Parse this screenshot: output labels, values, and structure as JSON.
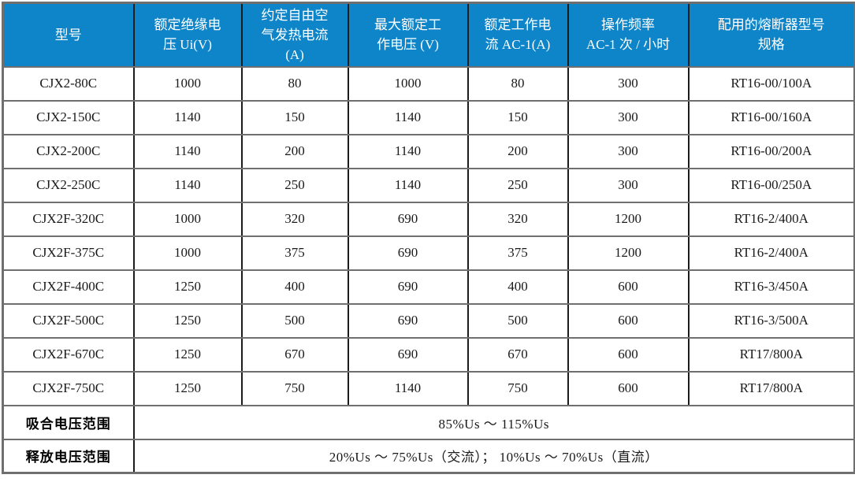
{
  "table": {
    "accent_color": "#0e85c8",
    "header_text_color": "#ffffff",
    "columns": [
      "型号",
      "额定绝缘电\n压 Ui(V)",
      "约定自由空\n气发热电流\n(A)",
      "最大额定工\n作电压 (V)",
      "额定工作电\n流 AC-1(A)",
      "操作频率\nAC-1 次 / 小时",
      "配用的熔断器型号\n规格"
    ],
    "rows": [
      [
        "CJX2-80C",
        "1000",
        "80",
        "1000",
        "80",
        "300",
        "RT16-00/100A"
      ],
      [
        "CJX2-150C",
        "1140",
        "150",
        "1140",
        "150",
        "300",
        "RT16-00/160A"
      ],
      [
        "CJX2-200C",
        "1140",
        "200",
        "1140",
        "200",
        "300",
        "RT16-00/200A"
      ],
      [
        "CJX2-250C",
        "1140",
        "250",
        "1140",
        "250",
        "300",
        "RT16-00/250A"
      ],
      [
        "CJX2F-320C",
        "1000",
        "320",
        "690",
        "320",
        "1200",
        "RT16-2/400A"
      ],
      [
        "CJX2F-375C",
        "1000",
        "375",
        "690",
        "375",
        "1200",
        "RT16-2/400A"
      ],
      [
        "CJX2F-400C",
        "1250",
        "400",
        "690",
        "400",
        "600",
        "RT16-3/450A"
      ],
      [
        "CJX2F-500C",
        "1250",
        "500",
        "690",
        "500",
        "600",
        "RT16-3/500A"
      ],
      [
        "CJX2F-670C",
        "1250",
        "670",
        "690",
        "670",
        "600",
        "RT17/800A"
      ],
      [
        "CJX2F-750C",
        "1250",
        "750",
        "1140",
        "750",
        "600",
        "RT17/800A"
      ]
    ],
    "footer_rows": [
      {
        "label": "吸合电压范围",
        "value": "85%Us ～ 115%Us"
      },
      {
        "label": "释放电压范围",
        "value": "20%Us ～ 75%Us（交流）； 10%Us ～ 70%Us（直流）"
      }
    ]
  }
}
